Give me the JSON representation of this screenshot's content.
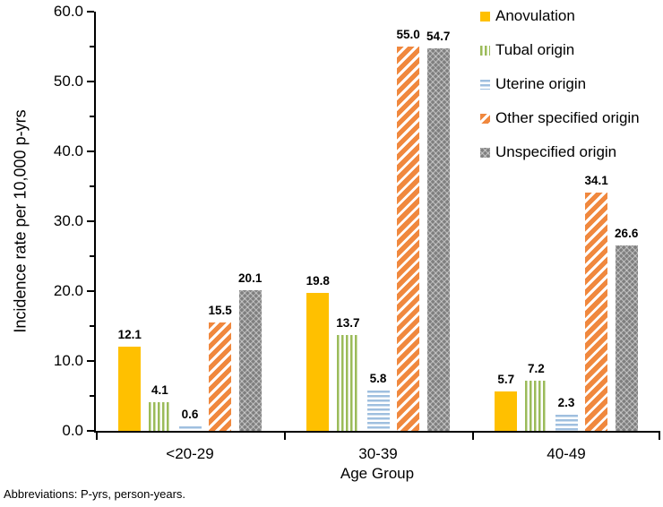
{
  "figure": {
    "footnote": "Abbreviations: P-yrs, person-years."
  },
  "chart_data": {
    "type": "bar",
    "title": "",
    "xlabel": "Age Group",
    "ylabel": "Incidence rate per 10,000 p-yrs",
    "categories": [
      "<20-29",
      "30-39",
      "40-49"
    ],
    "series": [
      {
        "name": "Anovulation",
        "pattern": "solid",
        "color": "#FFC000",
        "values": [
          12.1,
          19.8,
          5.7
        ]
      },
      {
        "name": "Tubal origin",
        "pattern": "vertical-stripes",
        "color": "#9BBB59",
        "values": [
          4.1,
          13.7,
          7.2
        ]
      },
      {
        "name": "Uterine origin",
        "pattern": "horizontal-stripes",
        "color": "#9FBFDF",
        "values": [
          0.6,
          5.8,
          2.3
        ]
      },
      {
        "name": "Other specified origin",
        "pattern": "diagonal-stripes",
        "color": "#F0883E",
        "values": [
          15.5,
          55.0,
          34.1
        ]
      },
      {
        "name": "Unspecified origin",
        "pattern": "zigzag",
        "color": "#7F7F7F",
        "values": [
          20.1,
          54.7,
          26.6
        ]
      }
    ],
    "ylim": [
      0,
      60
    ],
    "y_major_ticks": [
      0,
      10,
      20,
      30,
      40,
      50,
      60
    ],
    "y_minor_step": 5,
    "value_decimals": 1,
    "grid": false,
    "data_labels": true,
    "legend_position": "top-right"
  }
}
